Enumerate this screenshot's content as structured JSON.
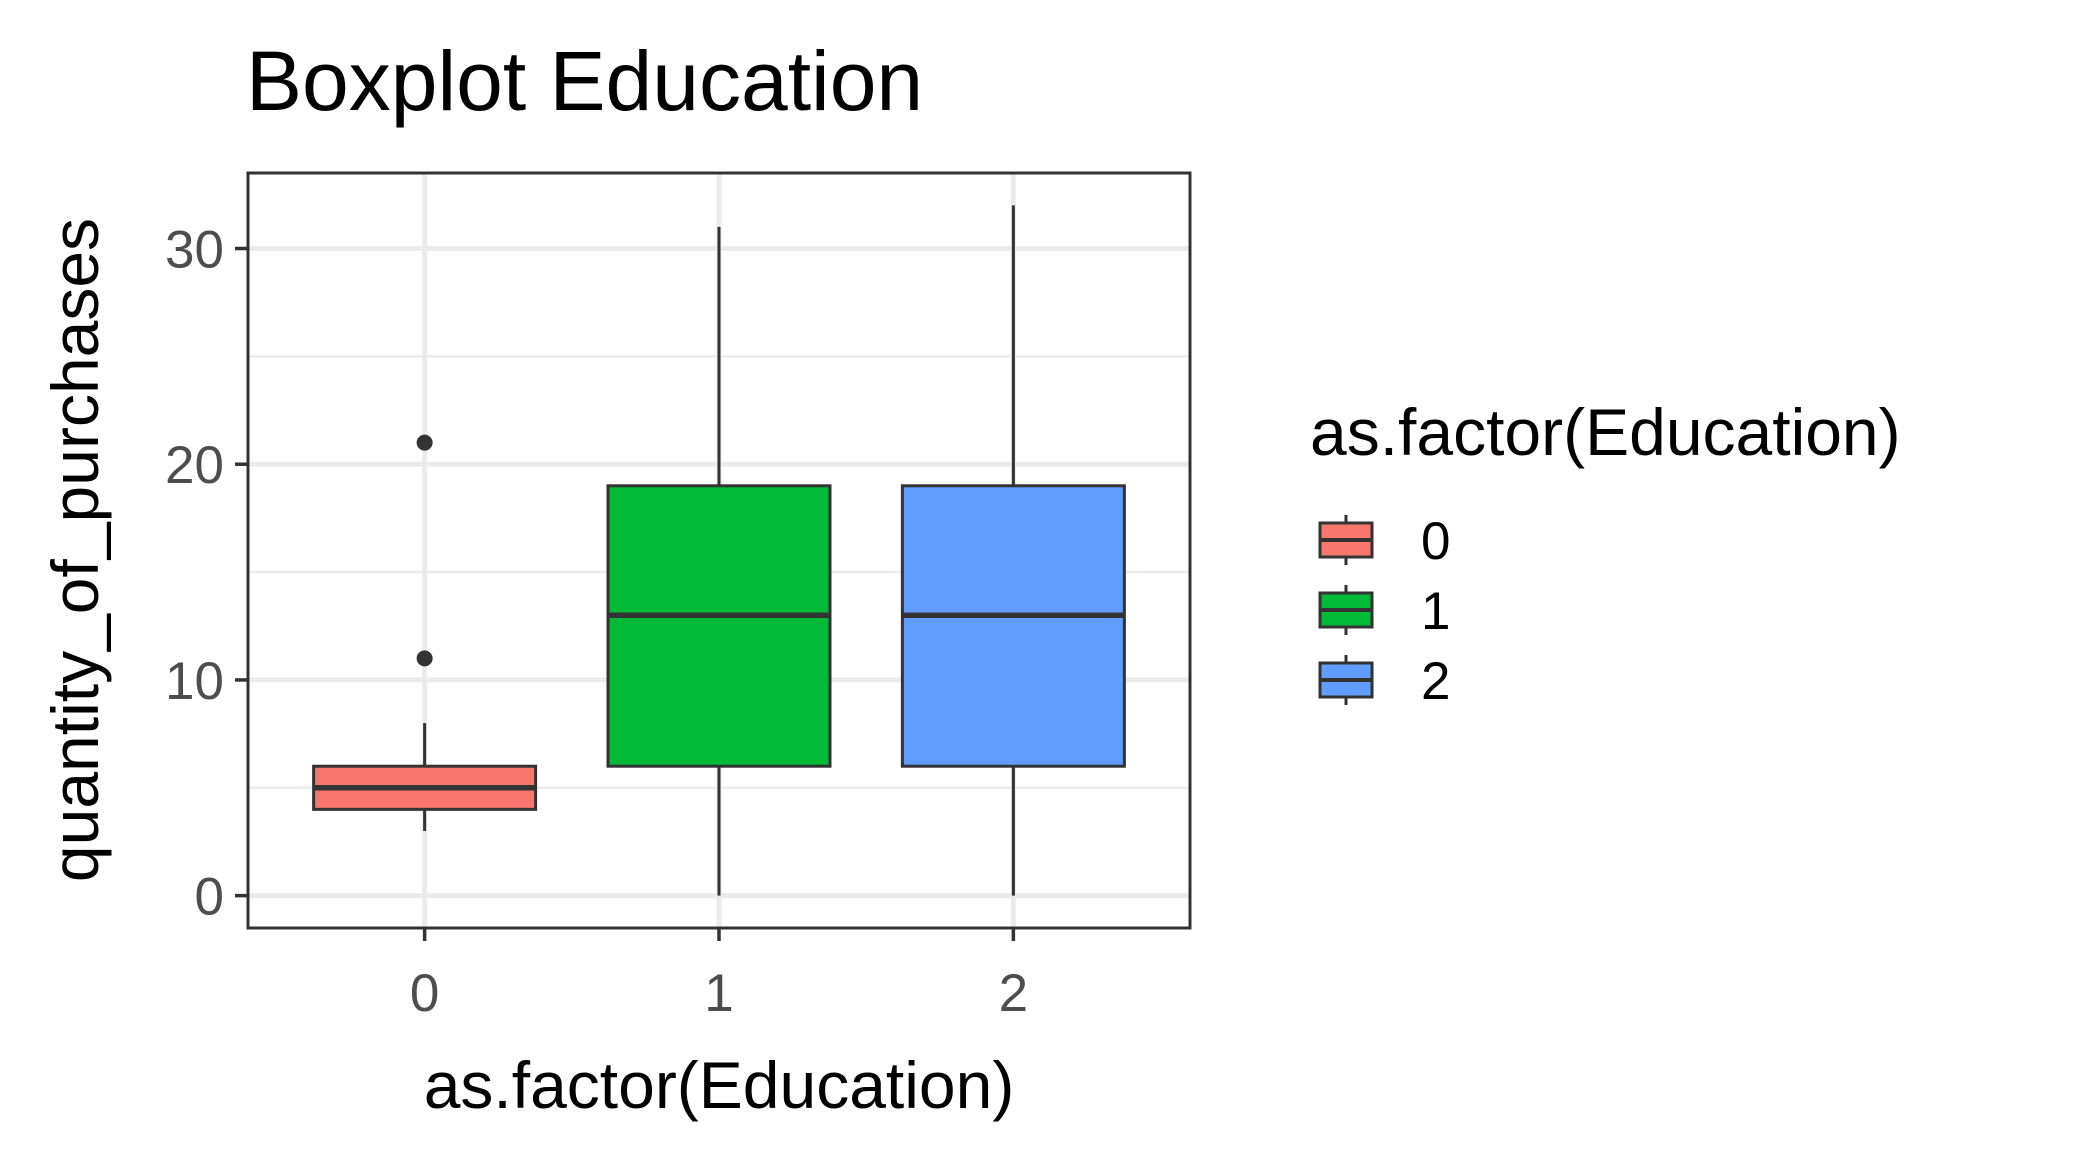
{
  "chart_data": {
    "type": "boxplot",
    "title": "Boxplot Education",
    "xlabel": "as.factor(Education)",
    "ylabel": "quantity_of_purchases",
    "categories": [
      "0",
      "1",
      "2"
    ],
    "ylim": [
      -1.5,
      33.5
    ],
    "y_ticks": [
      0,
      10,
      20,
      30
    ],
    "y_tick_labels": [
      "0",
      "10",
      "20",
      "30"
    ],
    "grid": true,
    "legend": {
      "title": "as.factor(Education)",
      "position": "right",
      "labels": [
        "0",
        "1",
        "2"
      ]
    },
    "series": [
      {
        "category": "0",
        "color": "#F8766D",
        "whisker_low": 3,
        "q1": 4,
        "median": 5,
        "q3": 6,
        "whisker_high": 8,
        "outliers": [
          11,
          21
        ]
      },
      {
        "category": "1",
        "color": "#00BA38",
        "whisker_low": 0,
        "q1": 6,
        "median": 13,
        "q3": 19,
        "whisker_high": 31,
        "outliers": []
      },
      {
        "category": "2",
        "color": "#619CFF",
        "whisker_low": 0,
        "q1": 6,
        "median": 13,
        "q3": 19,
        "whisker_high": 32,
        "outliers": []
      }
    ]
  }
}
